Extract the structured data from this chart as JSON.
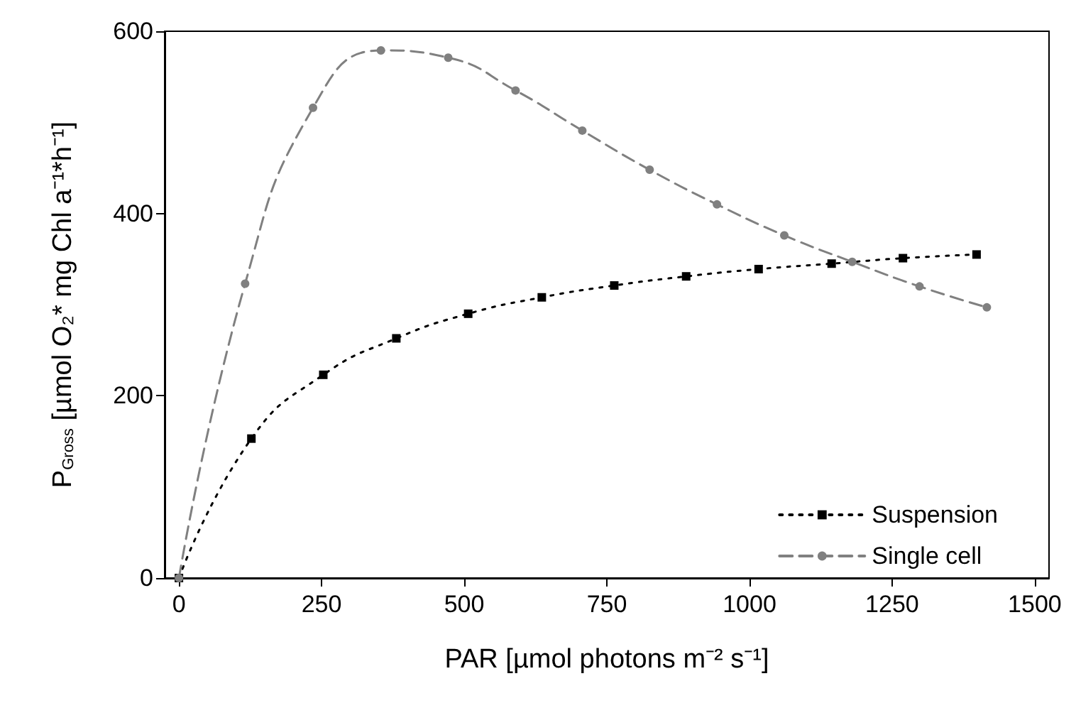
{
  "chart_data": {
    "type": "line",
    "xlabel": "PAR [µmol photons m⁻² s⁻¹]",
    "ylabel": "P$_{Gross}$ [µmol O₂* mg Chl a⁻¹*h⁻¹]",
    "series": [
      {
        "name": "Suspension",
        "color": "#000000",
        "marker": "square",
        "line_style": "dotted",
        "x": [
          0,
          127,
          253,
          381,
          507,
          636,
          763,
          889,
          1016,
          1144,
          1269,
          1398
        ],
        "values": [
          0,
          153,
          223,
          263,
          290,
          308,
          321,
          331,
          339,
          345,
          351,
          355
        ]
      },
      {
        "name": "Single cell",
        "color": "#808080",
        "marker": "circle",
        "line_style": "dashed",
        "x": [
          0,
          116,
          235,
          354,
          472,
          590,
          707,
          825,
          943,
          1061,
          1180,
          1298,
          1416
        ],
        "values": [
          0,
          323,
          516,
          579,
          571,
          535,
          491,
          448,
          410,
          376,
          347,
          320,
          297
        ]
      }
    ],
    "xlim": [
      -25,
      1525
    ],
    "xticks": [
      0,
      250,
      500,
      750,
      1000,
      1250,
      1500
    ],
    "ylim": [
      0,
      600
    ],
    "yticks": [
      0,
      200,
      400,
      600
    ],
    "grid": false,
    "legend": "bottom right"
  }
}
